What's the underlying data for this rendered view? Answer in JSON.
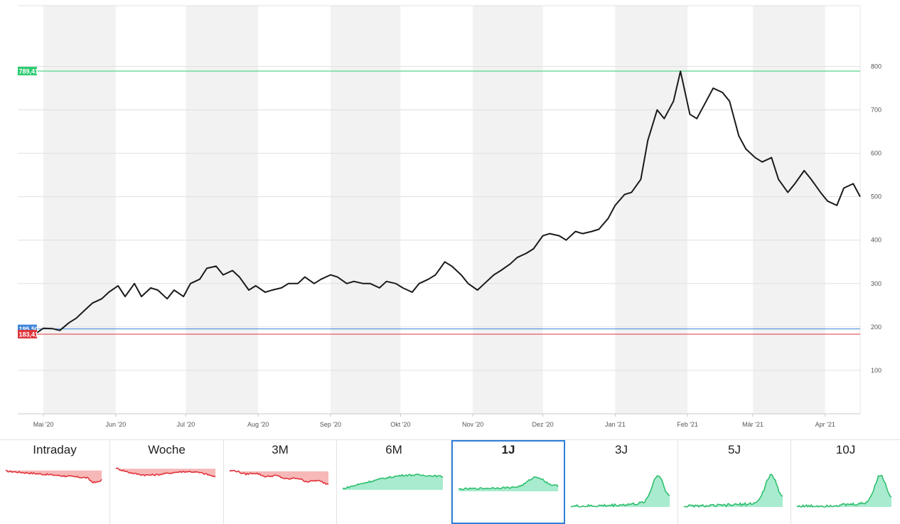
{
  "chart_data": {
    "type": "line",
    "title": "",
    "xlabel": "",
    "ylabel": "",
    "ylim": [
      0,
      940
    ],
    "y_ticks": [
      100,
      200,
      300,
      400,
      500,
      600,
      700,
      800
    ],
    "y_tick_labels": [
      "100",
      "200",
      "300",
      "400",
      "500",
      "600",
      "700",
      "800"
    ],
    "x_ticks": [
      "Mai '20",
      "Jun '20",
      "Jul '20",
      "Aug '20",
      "Sep '20",
      "Okt '20",
      "Nov '20",
      "Dez '20",
      "Jan '21",
      "Feb '21",
      "Mär '21",
      "Apr '21"
    ],
    "x_range": [
      "2020-04-20",
      "2021-04-16"
    ],
    "grid": true,
    "month_shading": true,
    "line_color": "#1a1a1a",
    "reference_lines": [
      {
        "value": 789.41,
        "label": "789,41",
        "color": "#2ecc71"
      },
      {
        "value": 195.5,
        "label": "195,50",
        "color": "#3b82d9"
      },
      {
        "value": 183.41,
        "label": "183,41",
        "color": "#e0343c"
      }
    ],
    "series": [
      {
        "x": [
          "2020-04-20",
          "2020-04-24",
          "2020-04-28",
          "2020-05-01",
          "2020-05-05",
          "2020-05-08",
          "2020-05-12",
          "2020-05-15",
          "2020-05-19",
          "2020-05-22",
          "2020-05-26",
          "2020-05-29",
          "2020-06-02",
          "2020-06-05",
          "2020-06-09",
          "2020-06-12",
          "2020-06-16",
          "2020-06-19",
          "2020-06-23",
          "2020-06-26",
          "2020-06-30",
          "2020-07-03",
          "2020-07-07",
          "2020-07-10",
          "2020-07-14",
          "2020-07-17",
          "2020-07-21",
          "2020-07-24",
          "2020-07-28",
          "2020-07-31",
          "2020-08-04",
          "2020-08-07",
          "2020-08-11",
          "2020-08-14",
          "2020-08-18",
          "2020-08-21",
          "2020-08-25",
          "2020-08-28",
          "2020-09-01",
          "2020-09-04",
          "2020-09-08",
          "2020-09-11",
          "2020-09-15",
          "2020-09-18",
          "2020-09-22",
          "2020-09-25",
          "2020-09-29",
          "2020-10-02",
          "2020-10-06",
          "2020-10-09",
          "2020-10-13",
          "2020-10-16",
          "2020-10-20",
          "2020-10-23",
          "2020-10-27",
          "2020-10-30",
          "2020-11-03",
          "2020-11-06",
          "2020-11-10",
          "2020-11-13",
          "2020-11-17",
          "2020-11-20",
          "2020-11-24",
          "2020-11-27",
          "2020-12-01",
          "2020-12-04",
          "2020-12-08",
          "2020-12-11",
          "2020-12-15",
          "2020-12-18",
          "2020-12-22",
          "2020-12-25",
          "2020-12-29",
          "2021-01-01",
          "2021-01-05",
          "2021-01-08",
          "2021-01-12",
          "2021-01-15",
          "2021-01-19",
          "2021-01-22",
          "2021-01-26",
          "2021-01-29",
          "2021-02-02",
          "2021-02-05",
          "2021-02-09",
          "2021-02-12",
          "2021-02-16",
          "2021-02-19",
          "2021-02-23",
          "2021-02-26",
          "2021-03-02",
          "2021-03-05",
          "2021-03-09",
          "2021-03-12",
          "2021-03-16",
          "2021-03-19",
          "2021-03-23",
          "2021-03-26",
          "2021-03-30",
          "2021-04-02",
          "2021-04-06",
          "2021-04-09",
          "2021-04-13",
          "2021-04-16"
        ],
        "values": [
          193,
          190,
          186,
          197,
          196,
          192,
          210,
          220,
          240,
          255,
          265,
          280,
          295,
          270,
          300,
          270,
          290,
          285,
          265,
          285,
          270,
          300,
          310,
          335,
          340,
          320,
          330,
          315,
          285,
          295,
          280,
          285,
          290,
          300,
          300,
          315,
          300,
          310,
          320,
          315,
          300,
          305,
          300,
          300,
          290,
          305,
          300,
          290,
          280,
          300,
          310,
          320,
          350,
          340,
          320,
          300,
          285,
          300,
          320,
          330,
          345,
          360,
          370,
          380,
          410,
          415,
          410,
          400,
          420,
          415,
          420,
          425,
          450,
          480,
          505,
          510,
          540,
          630,
          700,
          680,
          720,
          789,
          690,
          680,
          720,
          750,
          740,
          720,
          640,
          610,
          590,
          580,
          590,
          540,
          510,
          530,
          560,
          540,
          510,
          490,
          480,
          520,
          530,
          500
        ]
      }
    ]
  },
  "tabs": [
    {
      "label": "Intraday",
      "trend": "down"
    },
    {
      "label": "Woche",
      "trend": "down"
    },
    {
      "label": "3M",
      "trend": "down"
    },
    {
      "label": "6M",
      "trend": "up"
    },
    {
      "label": "1J",
      "trend": "up"
    },
    {
      "label": "3J",
      "trend": "up"
    },
    {
      "label": "5J",
      "trend": "up"
    },
    {
      "label": "10J",
      "trend": "up"
    }
  ],
  "active_tab": "1J",
  "colors": {
    "up_fill": "#a8ebcf",
    "up_line": "#2fbf6e",
    "down_fill": "#f7b8b8",
    "down_line": "#e0343c",
    "active_border": "#2f7fd8",
    "grid": "#e0e0e0",
    "shade": "#f2f2f2"
  }
}
